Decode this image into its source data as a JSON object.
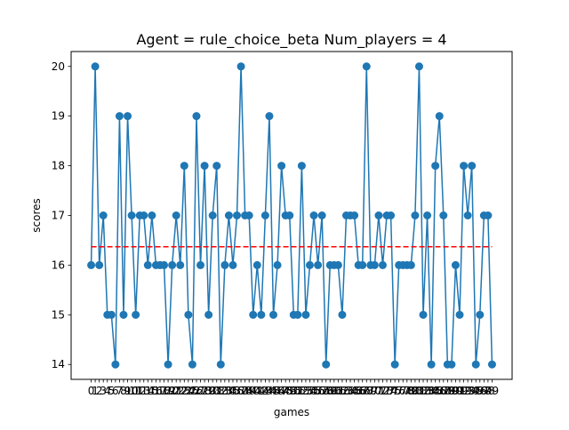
{
  "chart_data": {
    "type": "line",
    "title": "Agent = rule_choice_beta  Num_players = 4",
    "xlabel": "games",
    "ylabel": "scores",
    "xlim": [
      -4.95,
      103.95
    ],
    "ylim": [
      13.7,
      20.3
    ],
    "grid": false,
    "y_ticks": [
      14,
      15,
      16,
      17,
      18,
      19,
      20
    ],
    "x_ticks": [
      0,
      1,
      2,
      3,
      4,
      5,
      6,
      7,
      8,
      9,
      10,
      11,
      12,
      13,
      14,
      15,
      16,
      17,
      18,
      19,
      20,
      21,
      22,
      23,
      24,
      25,
      26,
      27,
      28,
      29,
      30,
      31,
      32,
      33,
      34,
      35,
      36,
      37,
      38,
      39,
      40,
      41,
      42,
      43,
      44,
      45,
      46,
      47,
      48,
      49,
      50,
      51,
      52,
      53,
      54,
      55,
      56,
      57,
      58,
      59,
      60,
      61,
      62,
      63,
      64,
      65,
      66,
      67,
      68,
      69,
      70,
      71,
      72,
      73,
      74,
      75,
      76,
      77,
      78,
      79,
      80,
      81,
      82,
      83,
      84,
      85,
      86,
      87,
      88,
      89,
      90,
      91,
      92,
      93,
      94,
      95,
      96,
      97,
      98,
      99
    ],
    "series": [
      {
        "color": "#1f77b4",
        "marker": "circle",
        "x": [
          0,
          1,
          2,
          3,
          4,
          5,
          6,
          7,
          8,
          9,
          10,
          11,
          12,
          13,
          14,
          15,
          16,
          17,
          18,
          19,
          20,
          21,
          22,
          23,
          24,
          25,
          26,
          27,
          28,
          29,
          30,
          31,
          32,
          33,
          34,
          35,
          36,
          37,
          38,
          39,
          40,
          41,
          42,
          43,
          44,
          45,
          46,
          47,
          48,
          49,
          50,
          51,
          52,
          53,
          54,
          55,
          56,
          57,
          58,
          59,
          60,
          61,
          62,
          63,
          64,
          65,
          66,
          67,
          68,
          69,
          70,
          71,
          72,
          73,
          74,
          75,
          76,
          77,
          78,
          79,
          80,
          81,
          82,
          83,
          84,
          85,
          86,
          87,
          88,
          89,
          90,
          91,
          92,
          93,
          94,
          95,
          96,
          97,
          98,
          99
        ],
        "values": [
          16,
          20,
          16,
          17,
          15,
          15,
          14,
          19,
          15,
          19,
          17,
          15,
          17,
          17,
          16,
          17,
          16,
          16,
          16,
          14,
          16,
          17,
          16,
          18,
          15,
          14,
          19,
          16,
          18,
          15,
          17,
          18,
          14,
          16,
          17,
          16,
          17,
          20,
          17,
          17,
          15,
          16,
          15,
          17,
          19,
          15,
          16,
          18,
          17,
          17,
          15,
          15,
          18,
          15,
          16,
          17,
          16,
          17,
          14,
          16,
          16,
          16,
          15,
          17,
          17,
          17,
          16,
          16,
          20,
          16,
          16,
          17,
          16,
          17,
          17,
          14,
          16,
          16,
          16,
          16,
          17,
          20,
          15,
          17,
          14,
          18,
          19,
          17,
          14,
          14,
          16,
          15,
          18,
          17,
          18,
          14,
          15,
          17,
          17,
          14
        ]
      },
      {
        "color": "#ff0000",
        "style": "dashed",
        "x": [
          0,
          99
        ],
        "values": [
          16.37,
          16.37
        ]
      }
    ]
  }
}
